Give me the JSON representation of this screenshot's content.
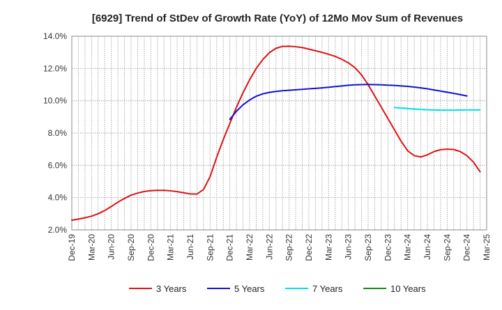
{
  "chart_data": {
    "type": "line",
    "title": "[6929]  Trend of StDev of Growth Rate (YoY) of 12Mo Mov Sum of Revenues",
    "xlabel": "",
    "ylabel": "",
    "ylim": [
      2.0,
      14.0
    ],
    "y_ticks": [
      2.0,
      4.0,
      6.0,
      8.0,
      10.0,
      12.0,
      14.0
    ],
    "y_tick_labels": [
      "2.0%",
      "4.0%",
      "6.0%",
      "8.0%",
      "10.0%",
      "12.0%",
      "14.0%"
    ],
    "x_tick_labels": [
      "Dec-19",
      "Mar-20",
      "Jun-20",
      "Sep-20",
      "Dec-20",
      "Mar-21",
      "Jun-21",
      "Sep-21",
      "Dec-21",
      "Mar-22",
      "Jun-22",
      "Sep-22",
      "Dec-22",
      "Mar-23",
      "Jun-23",
      "Sep-23",
      "Dec-23",
      "Mar-24",
      "Jun-24",
      "Sep-24",
      "Dec-24",
      "Mar-25"
    ],
    "x_start": "Dec-19",
    "x_months": 63,
    "grid": true,
    "legend_position": "bottom",
    "series": [
      {
        "name": "3 Years",
        "color": "#dd1111",
        "start_index": 0,
        "values": [
          2.6,
          2.67,
          2.75,
          2.85,
          3.0,
          3.2,
          3.45,
          3.72,
          3.95,
          4.15,
          4.28,
          4.38,
          4.43,
          4.45,
          4.45,
          4.42,
          4.37,
          4.3,
          4.23,
          4.22,
          4.5,
          5.3,
          6.5,
          7.6,
          8.6,
          9.6,
          10.5,
          11.3,
          12.0,
          12.55,
          12.98,
          13.25,
          13.37,
          13.38,
          13.35,
          13.3,
          13.2,
          13.1,
          13.0,
          12.88,
          12.75,
          12.57,
          12.35,
          12.05,
          11.6,
          11.0,
          10.3,
          9.6,
          8.9,
          8.2,
          7.5,
          6.9,
          6.6,
          6.52,
          6.65,
          6.85,
          6.97,
          7.0,
          6.98,
          6.85,
          6.6,
          6.2,
          5.6
        ],
        "labels": [
          "3 Years"
        ]
      },
      {
        "name": "5 Years",
        "color": "#1111cc",
        "start_index": 24,
        "values": [
          8.85,
          9.35,
          9.75,
          10.05,
          10.28,
          10.43,
          10.52,
          10.58,
          10.62,
          10.65,
          10.68,
          10.71,
          10.74,
          10.77,
          10.8,
          10.84,
          10.88,
          10.92,
          10.96,
          10.99,
          11.0,
          11.01,
          11.0,
          10.99,
          10.97,
          10.95,
          10.92,
          10.89,
          10.85,
          10.8,
          10.74,
          10.67,
          10.6,
          10.53,
          10.46,
          10.38,
          10.3
        ],
        "labels": [
          "5 Years"
        ]
      },
      {
        "name": "7 Years",
        "color": "#00dddd",
        "start_index": 49,
        "values": [
          9.58,
          9.55,
          9.52,
          9.49,
          9.46,
          9.44,
          9.43,
          9.42,
          9.42,
          9.42,
          9.43,
          9.43,
          9.43,
          9.43
        ],
        "labels": [
          "7 Years"
        ]
      },
      {
        "name": "10 Years",
        "color": "#118811",
        "start_index": 0,
        "values": [],
        "labels": [
          "10 Years"
        ]
      }
    ]
  }
}
